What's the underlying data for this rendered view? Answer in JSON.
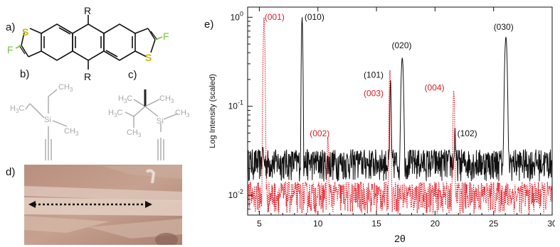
{
  "panels": {
    "a": "a)",
    "b": "b)",
    "c": "c)",
    "d": "d)",
    "e": "e)"
  },
  "molecule_a": {
    "sub_top": "R",
    "sub_bottom": "R",
    "atom_s_left": "S",
    "atom_s_right": "S",
    "atom_f_left": "F",
    "atom_f_right": "F"
  },
  "molecule_b": {
    "ch3_top": "CH",
    "ch3_top_sub": "3",
    "ch3_left": "H",
    "ch3_left_sub": "3",
    "ch3_left_c": "C",
    "si": "Si",
    "ch3_right": "CH",
    "ch3_right_sub": "3"
  },
  "molecule_c": {
    "h3c_top": "H",
    "h3c_top_sub": "3",
    "h3c_top_c": "C",
    "ch3_right_top": "CH",
    "ch3_right_top_sub": "3",
    "h3c_mid": "H",
    "h3c_mid_sub": "3",
    "h3c_mid_c": "C",
    "si": "Si",
    "ch3_si": "CH",
    "ch3_si_sub": "3",
    "ch3_bottom": "CH",
    "ch3_bottom_sub": "3"
  },
  "colors": {
    "black_trace": "#111111",
    "red_trace": "#e0141e",
    "red_label": "#d42027",
    "chem_grey": "#a8a8a8",
    "sulfur": "#c9b400",
    "fluorine": "#7ac142"
  },
  "chart_data": {
    "type": "line",
    "xlabel": "2θ",
    "ylabel": "Log Intensity (scaled)",
    "xlim": [
      4,
      30
    ],
    "ylim": [
      0.006,
      1.3
    ],
    "yscale": "log",
    "x_ticks": [
      5,
      10,
      15,
      20,
      25,
      30
    ],
    "y_ticks": [
      {
        "value": 1,
        "base": "10",
        "exp": "0"
      },
      {
        "value": 0.1,
        "base": "10",
        "exp": "-1"
      },
      {
        "value": 0.01,
        "base": "10",
        "exp": "-2"
      }
    ],
    "series": [
      {
        "color": "#111111",
        "style": "solid",
        "baseline": 0.022,
        "peaks": [
          [
            5.3,
            0.035,
            0.08
          ],
          [
            8.65,
            1.0,
            0.05
          ],
          [
            13.3,
            0.026,
            0.1
          ],
          [
            16.2,
            0.2,
            0.05
          ],
          [
            17.2,
            0.35,
            0.09
          ],
          [
            21.7,
            0.058,
            0.05
          ],
          [
            26.05,
            0.6,
            0.09
          ]
        ]
      },
      {
        "color": "#e0141e",
        "style": "dotted",
        "baseline": 0.0095,
        "peaks": [
          [
            5.4,
            1.0,
            0.06
          ],
          [
            10.85,
            0.045,
            0.06
          ],
          [
            16.15,
            0.26,
            0.06
          ],
          [
            21.6,
            0.15,
            0.06
          ]
        ]
      }
    ],
    "annotations": [
      {
        "text": "(001)",
        "x": 5.45,
        "y": 0.93,
        "color": "#d42027"
      },
      {
        "text": "(010)",
        "x": 8.85,
        "y": 0.93,
        "color": "#111111"
      },
      {
        "text": "(002)",
        "x": 9.3,
        "y": 0.046,
        "color": "#d42027"
      },
      {
        "text": "(101)",
        "x": 13.9,
        "y": 0.21,
        "color": "#111111"
      },
      {
        "text": "(003)",
        "x": 13.9,
        "y": 0.13,
        "color": "#d42027"
      },
      {
        "text": "(020)",
        "x": 16.3,
        "y": 0.45,
        "color": "#111111"
      },
      {
        "text": "(004)",
        "x": 19.1,
        "y": 0.15,
        "color": "#d42027"
      },
      {
        "text": "(102)",
        "x": 21.9,
        "y": 0.046,
        "color": "#111111"
      },
      {
        "text": "(030)",
        "x": 25.0,
        "y": 0.72,
        "color": "#111111"
      }
    ]
  }
}
